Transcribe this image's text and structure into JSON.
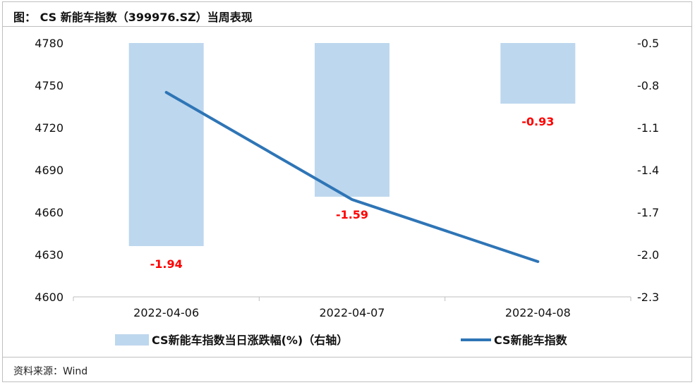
{
  "title": "图：  CS 新能车指数（399976.SZ）当周表现",
  "source": "资料来源：Wind",
  "chart_data": {
    "type": "bar+line",
    "categories": [
      "2022-04-06",
      "2022-04-07",
      "2022-04-08"
    ],
    "series": [
      {
        "name": "CS新能车指数当日涨跌幅(%)（右轴）",
        "kind": "bar",
        "axis": "right",
        "values": [
          -1.94,
          -1.59,
          -0.93
        ],
        "color": "#bdd7ee"
      },
      {
        "name": "CS新能车指数",
        "kind": "line",
        "axis": "left",
        "values": [
          4745,
          4669,
          4625
        ],
        "color": "#2e75b6"
      }
    ],
    "data_labels": [
      "-1.94",
      "-1.59",
      "-0.93"
    ],
    "left_axis": {
      "ylim": [
        4600,
        4780
      ],
      "ticks": [
        "4780",
        "4750",
        "4720",
        "4690",
        "4660",
        "4630",
        "4600"
      ]
    },
    "right_axis": {
      "ylim": [
        -2.3,
        -0.5
      ],
      "ticks": [
        "-0.5",
        "-0.8",
        "-1.1",
        "-1.4",
        "-1.7",
        "-2.0",
        "-2.3"
      ]
    },
    "grid": false,
    "legend": "bottom"
  }
}
